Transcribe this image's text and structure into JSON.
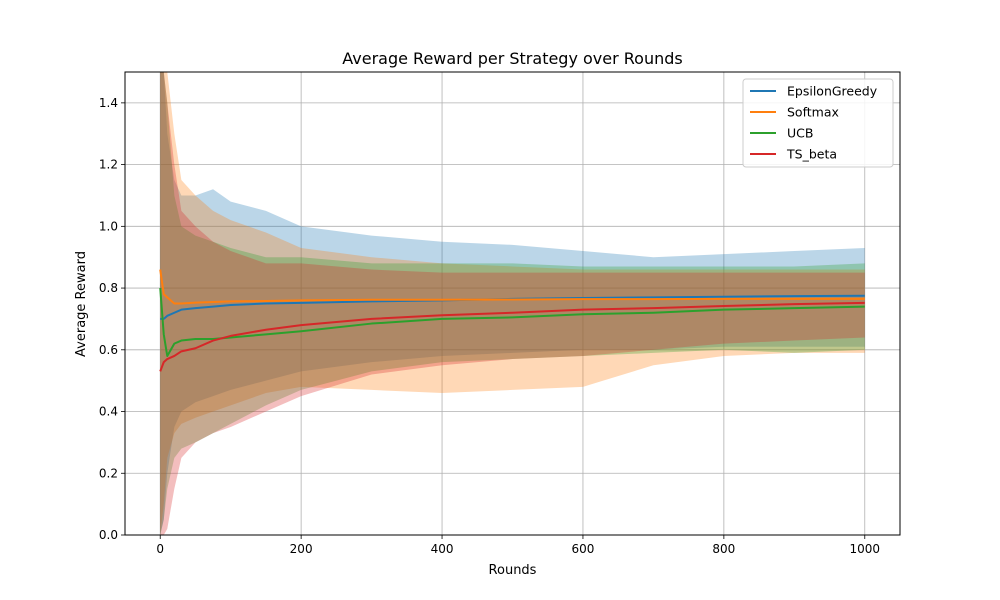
{
  "chart_data": {
    "type": "line",
    "title": "Average Reward per Strategy over Rounds",
    "xlabel": "Rounds",
    "ylabel": "Average Reward",
    "xlim": [
      -50,
      1050
    ],
    "ylim": [
      0.0,
      1.5
    ],
    "xticks": [
      0,
      200,
      400,
      600,
      800,
      1000
    ],
    "yticks": [
      0.0,
      0.2,
      0.4,
      0.6,
      0.8,
      1.0,
      1.2,
      1.4
    ],
    "xtick_labels": [
      "0",
      "200",
      "400",
      "600",
      "800",
      "1000"
    ],
    "ytick_labels": [
      "0.0",
      "0.2",
      "0.4",
      "0.6",
      "0.8",
      "1.0",
      "1.2",
      "1.4"
    ],
    "grid": true,
    "legend_position": "top-right",
    "x": [
      0,
      5,
      10,
      20,
      30,
      50,
      75,
      100,
      150,
      200,
      300,
      400,
      500,
      600,
      700,
      800,
      900,
      1000
    ],
    "series": [
      {
        "name": "EpsilonGreedy",
        "color": "#1f77b4",
        "values": [
          0.7,
          0.7,
          0.71,
          0.72,
          0.73,
          0.735,
          0.74,
          0.745,
          0.75,
          0.752,
          0.757,
          0.76,
          0.765,
          0.768,
          0.77,
          0.772,
          0.774,
          0.775
        ],
        "lower": [
          0.0,
          0.05,
          0.2,
          0.35,
          0.4,
          0.43,
          0.45,
          0.47,
          0.5,
          0.53,
          0.56,
          0.58,
          0.59,
          0.6,
          0.6,
          0.61,
          0.61,
          0.61
        ],
        "upper": [
          1.5,
          1.5,
          1.3,
          1.15,
          1.1,
          1.1,
          1.12,
          1.08,
          1.05,
          1.0,
          0.97,
          0.95,
          0.94,
          0.92,
          0.9,
          0.91,
          0.92,
          0.93
        ]
      },
      {
        "name": "Softmax",
        "color": "#ff7f0e",
        "values": [
          0.86,
          0.78,
          0.77,
          0.75,
          0.75,
          0.753,
          0.755,
          0.757,
          0.758,
          0.76,
          0.762,
          0.762,
          0.763,
          0.764,
          0.764,
          0.765,
          0.765,
          0.765
        ],
        "lower": [
          0.0,
          0.1,
          0.25,
          0.33,
          0.36,
          0.38,
          0.4,
          0.42,
          0.46,
          0.48,
          0.47,
          0.46,
          0.47,
          0.48,
          0.55,
          0.58,
          0.59,
          0.59
        ],
        "upper": [
          1.5,
          1.5,
          1.5,
          1.3,
          1.15,
          1.1,
          1.05,
          1.02,
          0.98,
          0.93,
          0.9,
          0.88,
          0.87,
          0.86,
          0.86,
          0.86,
          0.86,
          0.86
        ]
      },
      {
        "name": "UCB",
        "color": "#2ca02c",
        "values": [
          0.8,
          0.65,
          0.58,
          0.62,
          0.63,
          0.635,
          0.635,
          0.64,
          0.65,
          0.66,
          0.685,
          0.7,
          0.705,
          0.715,
          0.72,
          0.73,
          0.735,
          0.74
        ],
        "lower": [
          0.0,
          0.05,
          0.15,
          0.25,
          0.28,
          0.3,
          0.33,
          0.36,
          0.42,
          0.47,
          0.53,
          0.56,
          0.57,
          0.58,
          0.59,
          0.6,
          0.59,
          0.6
        ],
        "upper": [
          1.5,
          1.5,
          1.4,
          1.1,
          1.0,
          0.97,
          0.95,
          0.93,
          0.9,
          0.9,
          0.88,
          0.88,
          0.88,
          0.87,
          0.87,
          0.87,
          0.87,
          0.88
        ]
      },
      {
        "name": "TS_beta",
        "color": "#d62728",
        "values": [
          0.53,
          0.56,
          0.57,
          0.58,
          0.595,
          0.605,
          0.63,
          0.645,
          0.665,
          0.68,
          0.7,
          0.712,
          0.72,
          0.73,
          0.735,
          0.742,
          0.748,
          0.752
        ],
        "lower": [
          0.0,
          0.0,
          0.02,
          0.15,
          0.25,
          0.3,
          0.33,
          0.35,
          0.4,
          0.45,
          0.52,
          0.55,
          0.57,
          0.58,
          0.6,
          0.62,
          0.63,
          0.64
        ],
        "upper": [
          1.5,
          1.5,
          1.4,
          1.2,
          1.05,
          1.0,
          0.95,
          0.92,
          0.88,
          0.88,
          0.86,
          0.85,
          0.85,
          0.85,
          0.85,
          0.85,
          0.85,
          0.85
        ]
      }
    ]
  }
}
